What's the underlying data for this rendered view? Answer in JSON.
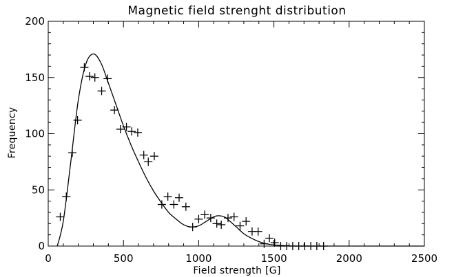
{
  "chart_data": {
    "type": "scatter",
    "title": "Magnetic field strenght distribution",
    "xlabel": "Field strength [G]",
    "ylabel": "Frequency",
    "xlim": [
      0,
      2500
    ],
    "ylim": [
      0,
      200
    ],
    "xticks": [
      0,
      500,
      1000,
      1500,
      2000,
      2500
    ],
    "yticks": [
      0,
      50,
      100,
      150,
      200
    ],
    "xtick_labels": [
      "0",
      "500",
      "1000",
      "1500",
      "2000",
      "2500"
    ],
    "ytick_labels": [
      "0",
      "50",
      "100",
      "150",
      "200"
    ],
    "grid": false,
    "legend": null,
    "series": [
      {
        "style": "plus-markers",
        "points": [
          [
            80,
            26
          ],
          [
            120,
            44
          ],
          [
            160,
            83
          ],
          [
            195,
            112
          ],
          [
            240,
            159
          ],
          [
            275,
            151
          ],
          [
            310,
            150
          ],
          [
            355,
            138
          ],
          [
            395,
            149
          ],
          [
            440,
            121
          ],
          [
            480,
            104
          ],
          [
            520,
            106
          ],
          [
            555,
            102
          ],
          [
            595,
            101
          ],
          [
            635,
            81
          ],
          [
            665,
            75
          ],
          [
            705,
            80
          ],
          [
            755,
            37
          ],
          [
            795,
            44
          ],
          [
            835,
            37
          ],
          [
            870,
            43
          ],
          [
            915,
            35
          ],
          [
            960,
            17
          ],
          [
            1000,
            24
          ],
          [
            1040,
            28
          ],
          [
            1080,
            25
          ],
          [
            1120,
            20
          ],
          [
            1150,
            19
          ],
          [
            1195,
            25
          ],
          [
            1235,
            26
          ],
          [
            1275,
            18
          ],
          [
            1315,
            22
          ],
          [
            1355,
            13
          ],
          [
            1395,
            13
          ],
          [
            1435,
            2
          ],
          [
            1470,
            7
          ],
          [
            1505,
            3
          ],
          [
            1545,
            0
          ],
          [
            1585,
            0
          ],
          [
            1625,
            0
          ],
          [
            1665,
            0
          ],
          [
            1705,
            0
          ],
          [
            1745,
            0
          ],
          [
            1785,
            0
          ],
          [
            1830,
            0
          ]
        ]
      },
      {
        "style": "line",
        "points": [
          [
            60,
            0
          ],
          [
            100,
            22
          ],
          [
            150,
            75
          ],
          [
            200,
            130
          ],
          [
            250,
            162
          ],
          [
            300,
            171
          ],
          [
            350,
            163
          ],
          [
            400,
            145
          ],
          [
            450,
            126
          ],
          [
            500,
            107
          ],
          [
            550,
            90
          ],
          [
            600,
            75
          ],
          [
            650,
            61
          ],
          [
            700,
            49
          ],
          [
            750,
            39
          ],
          [
            800,
            30
          ],
          [
            850,
            24
          ],
          [
            900,
            19
          ],
          [
            950,
            17
          ],
          [
            1000,
            18
          ],
          [
            1050,
            22
          ],
          [
            1100,
            26
          ],
          [
            1130,
            27
          ],
          [
            1170,
            26
          ],
          [
            1200,
            23
          ],
          [
            1250,
            17
          ],
          [
            1300,
            11
          ],
          [
            1350,
            7
          ],
          [
            1400,
            4
          ],
          [
            1450,
            2
          ],
          [
            1500,
            1
          ],
          [
            1600,
            0.3
          ],
          [
            1700,
            0
          ],
          [
            2500,
            0
          ]
        ]
      }
    ]
  }
}
